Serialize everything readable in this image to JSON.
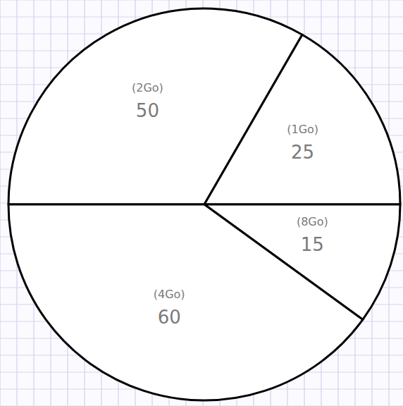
{
  "chart_data": {
    "type": "pie",
    "categories": [
      "(2Go)",
      "(1Go)",
      "(8Go)",
      "(4Go)"
    ],
    "values": [
      50,
      25,
      15,
      60
    ],
    "color": "#ffffff",
    "data_labels": true
  }
}
